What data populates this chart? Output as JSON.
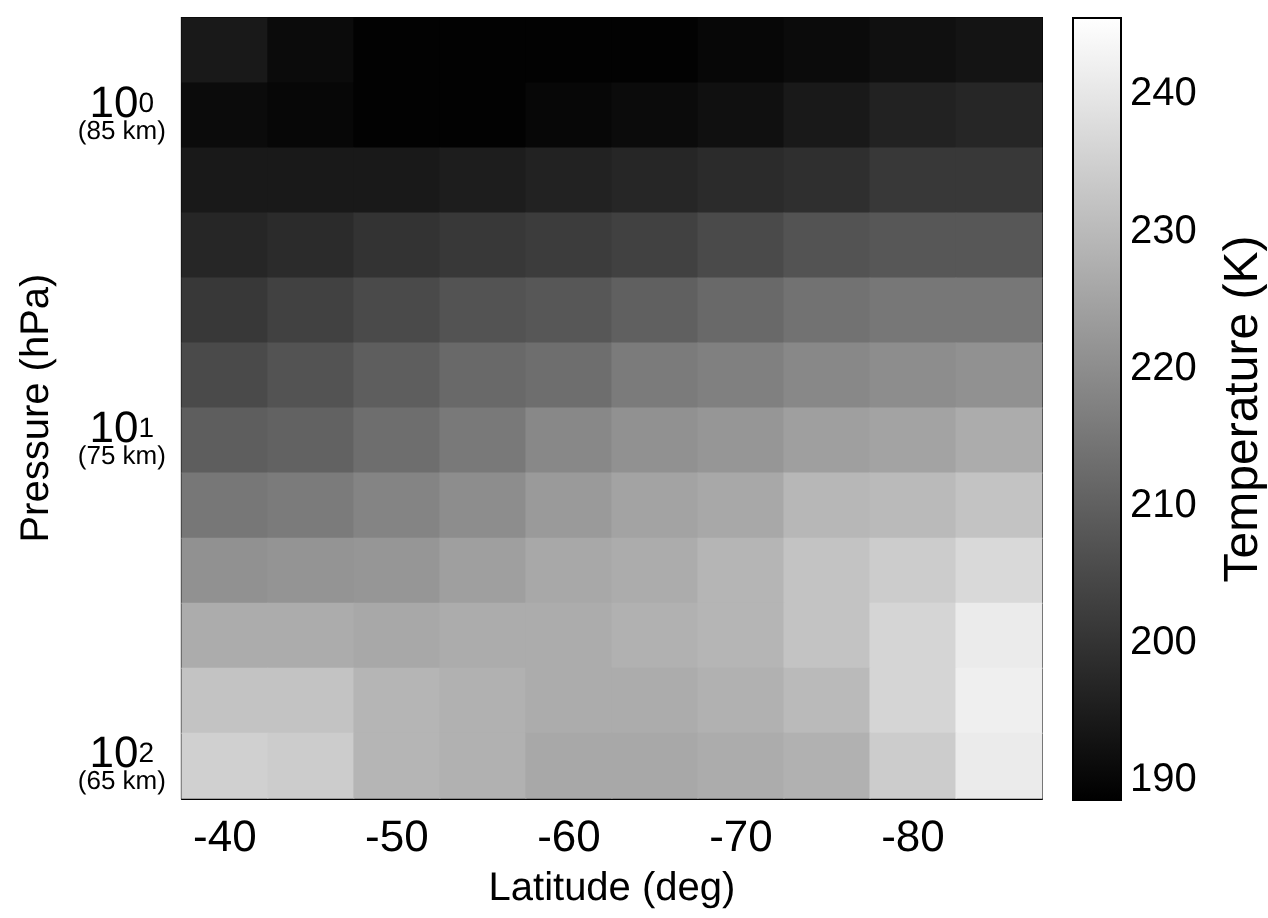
{
  "chart_data": {
    "type": "heatmap",
    "xlabel": "Latitude (deg)",
    "ylabel": "Pressure (hPa)",
    "clabel": "Temperature (K)",
    "categories": [
      "-40",
      null,
      "-50",
      null,
      "-60",
      null,
      "-70",
      null,
      "-80",
      null
    ],
    "y_categories": [
      null,
      "10$^{0}$\n(85 km)",
      null,
      null,
      null,
      null,
      "10$^{1}$\n(75 km)",
      null,
      null,
      null,
      null,
      "10$^{2}$\n(65 km)"
    ],
    "cells": [
      [
        194,
        191,
        189,
        189,
        189,
        189,
        190,
        191,
        192,
        193
      ],
      [
        191,
        190,
        189,
        189,
        190,
        191,
        192,
        194,
        196,
        197
      ],
      [
        194,
        194,
        194,
        195,
        196,
        197,
        198,
        199,
        201,
        201
      ],
      [
        197,
        198,
        200,
        201,
        202,
        203,
        205,
        207,
        208,
        208
      ],
      [
        201,
        203,
        205,
        207,
        208,
        210,
        212,
        214,
        215,
        215
      ],
      [
        205,
        207,
        209.5,
        212,
        213,
        216,
        217,
        219,
        220,
        221
      ],
      [
        209.5,
        210.5,
        213,
        215.5,
        219,
        221,
        222,
        224,
        225,
        227
      ],
      [
        215,
        216,
        218,
        220,
        223,
        225,
        226,
        229.5,
        230,
        232
      ],
      [
        221,
        221.5,
        222,
        224,
        226,
        227,
        229,
        232,
        234,
        237
      ],
      [
        227,
        227,
        226,
        227,
        227,
        228,
        229,
        232,
        236,
        241
      ],
      [
        232,
        232,
        229,
        228,
        227,
        227,
        228,
        230,
        236,
        242
      ],
      [
        235,
        234,
        229,
        228,
        226,
        226,
        227,
        228,
        234,
        241
      ]
    ],
    "clim": [
      188.5,
      245.5
    ],
    "cticks": [
      190,
      200,
      210,
      220,
      230,
      240
    ]
  }
}
